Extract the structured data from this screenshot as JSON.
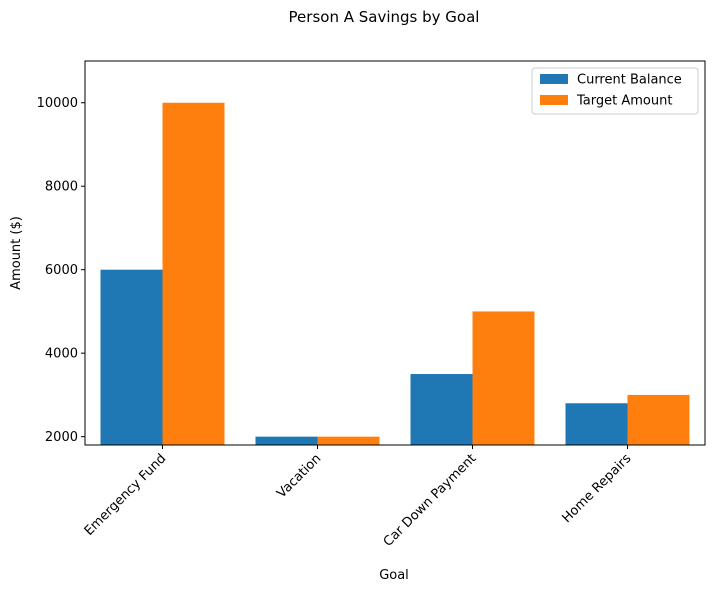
{
  "chart_data": {
    "type": "bar",
    "title": "Person A Savings by Goal",
    "xlabel": "Goal",
    "ylabel": "Amount ($)",
    "categories": [
      "Emergency Fund",
      "Vacation",
      "Car Down Payment",
      "Home Repairs"
    ],
    "series": [
      {
        "name": "Current Balance",
        "values": [
          6000,
          2000,
          3500,
          2800
        ],
        "color": "#1f77b4"
      },
      {
        "name": "Target Amount",
        "values": [
          10000,
          2000,
          5000,
          3000
        ],
        "color": "#ff7f0e"
      }
    ],
    "ylim": [
      1800,
      11000
    ],
    "yticks": [
      2000,
      4000,
      6000,
      8000,
      10000
    ],
    "ytick_labels": [
      "2000",
      "4000",
      "6000",
      "8000",
      "10000"
    ],
    "xtick_rotation": 45,
    "grid": false,
    "legend_position": "top-right"
  }
}
